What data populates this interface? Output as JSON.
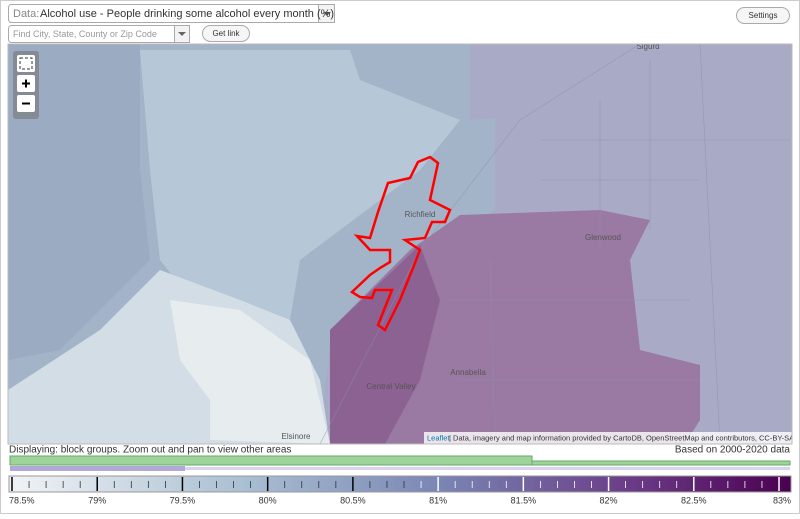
{
  "controls": {
    "data_prefix": "Data:",
    "data_select": "Alcohol use - People drinking some alcohol every month (%)",
    "search_placeholder": "Find City, State, County or Zip Code",
    "get_link": "Get link",
    "settings": "Settings"
  },
  "map": {
    "places": [
      "Sigurd",
      "Richfield",
      "Glenwood",
      "Central Valley",
      "Annabella",
      "Elsinore"
    ],
    "attribution_link": "Leaflet",
    "attribution_text": "| Data, imagery and map information provided by CartoDB, OpenStreetMap and contributors, CC-BY-SA"
  },
  "status": {
    "displaying": "Displaying: block groups. Zoom out and pan to view other areas",
    "based_on": "Based on 2000-2020 data"
  },
  "legend": {
    "ticks": [
      {
        "value": 78.5,
        "label": "78.5%"
      },
      {
        "value": 79,
        "label": "79%"
      },
      {
        "value": 79.5,
        "label": "79.5%"
      },
      {
        "value": 80,
        "label": "80%"
      },
      {
        "value": 80.5,
        "label": "80.5%"
      },
      {
        "value": 81,
        "label": "81%"
      },
      {
        "value": 81.5,
        "label": "81.5%"
      },
      {
        "value": 82,
        "label": "82%"
      },
      {
        "value": 82.5,
        "label": "82.5%"
      },
      {
        "value": 83,
        "label": "83%"
      }
    ]
  }
}
